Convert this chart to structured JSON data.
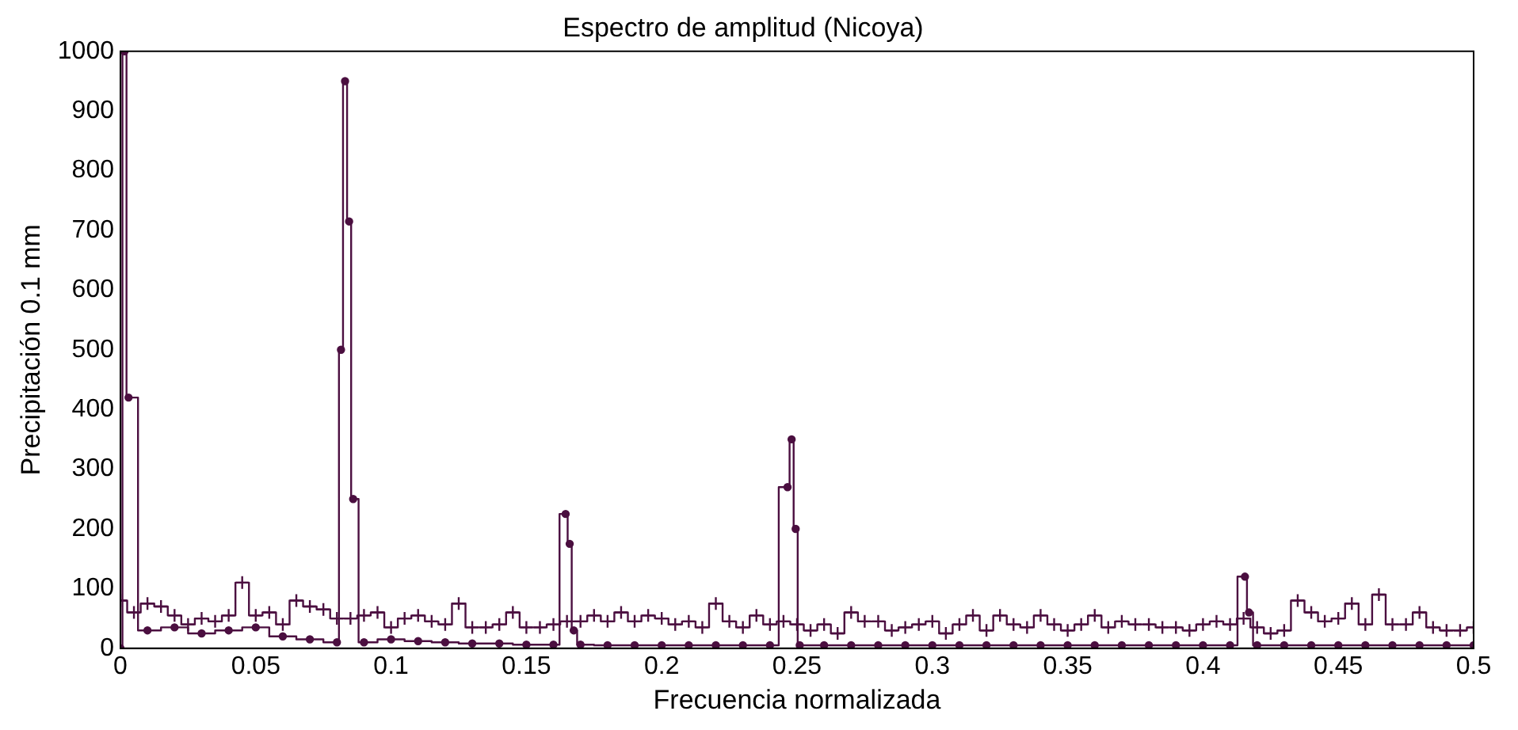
{
  "chart_data": {
    "type": "step",
    "title": "Espectro de amplitud (Nicoya)",
    "xlabel": "Frecuencia normalizada",
    "ylabel": "Precipitación 0.1 mm",
    "xlim": [
      0,
      0.5
    ],
    "ylim": [
      0,
      1000
    ],
    "xticks": [
      0,
      0.05,
      0.1,
      0.15,
      0.2,
      0.25,
      0.3,
      0.35,
      0.4,
      0.45,
      0.5
    ],
    "yticks": [
      0,
      100,
      200,
      300,
      400,
      500,
      600,
      700,
      800,
      900,
      1000
    ],
    "grid": false,
    "legend": false,
    "series": [
      {
        "color": "#4b0f40",
        "marker": "cross",
        "x": [
          0,
          0.005,
          0.01,
          0.015,
          0.02,
          0.025,
          0.03,
          0.035,
          0.04,
          0.045,
          0.05,
          0.055,
          0.06,
          0.065,
          0.07,
          0.075,
          0.08,
          0.085,
          0.09,
          0.095,
          0.1,
          0.105,
          0.11,
          0.115,
          0.12,
          0.125,
          0.13,
          0.135,
          0.14,
          0.145,
          0.15,
          0.155,
          0.16,
          0.165,
          0.17,
          0.175,
          0.18,
          0.185,
          0.19,
          0.195,
          0.2,
          0.205,
          0.21,
          0.215,
          0.22,
          0.225,
          0.23,
          0.235,
          0.24,
          0.245,
          0.25,
          0.255,
          0.26,
          0.265,
          0.27,
          0.275,
          0.28,
          0.285,
          0.29,
          0.295,
          0.3,
          0.305,
          0.31,
          0.315,
          0.32,
          0.325,
          0.33,
          0.335,
          0.34,
          0.345,
          0.35,
          0.355,
          0.36,
          0.365,
          0.37,
          0.375,
          0.38,
          0.385,
          0.39,
          0.395,
          0.4,
          0.405,
          0.41,
          0.415,
          0.42,
          0.425,
          0.43,
          0.435,
          0.44,
          0.445,
          0.45,
          0.455,
          0.46,
          0.465,
          0.47,
          0.475,
          0.48,
          0.485,
          0.49,
          0.495,
          0.5
        ],
        "values": [
          80,
          60,
          75,
          70,
          55,
          40,
          50,
          45,
          55,
          110,
          55,
          60,
          40,
          80,
          70,
          65,
          50,
          50,
          55,
          60,
          35,
          50,
          55,
          45,
          40,
          75,
          35,
          35,
          40,
          60,
          35,
          35,
          40,
          45,
          45,
          55,
          45,
          60,
          45,
          55,
          50,
          40,
          45,
          35,
          75,
          45,
          35,
          55,
          40,
          45,
          40,
          30,
          40,
          25,
          60,
          45,
          45,
          30,
          35,
          40,
          45,
          25,
          40,
          55,
          30,
          55,
          40,
          35,
          55,
          40,
          30,
          40,
          55,
          35,
          45,
          40,
          40,
          35,
          35,
          30,
          40,
          45,
          40,
          50,
          35,
          25,
          30,
          80,
          60,
          45,
          50,
          75,
          40,
          90,
          40,
          40,
          60,
          35,
          30,
          30,
          35
        ]
      },
      {
        "color": "#4b0f40",
        "marker": "circle",
        "x": [
          0,
          0.0015,
          0.003,
          0.01,
          0.02,
          0.03,
          0.04,
          0.05,
          0.06,
          0.07,
          0.08,
          0.0815,
          0.083,
          0.0845,
          0.086,
          0.09,
          0.1,
          0.11,
          0.12,
          0.13,
          0.14,
          0.15,
          0.16,
          0.1645,
          0.166,
          0.1675,
          0.17,
          0.18,
          0.19,
          0.2,
          0.21,
          0.22,
          0.23,
          0.24,
          0.2465,
          0.248,
          0.2495,
          0.251,
          0.26,
          0.27,
          0.28,
          0.29,
          0.3,
          0.31,
          0.32,
          0.33,
          0.34,
          0.35,
          0.36,
          0.37,
          0.38,
          0.39,
          0.4,
          0.41,
          0.4155,
          0.417,
          0.42,
          0.43,
          0.44,
          0.45,
          0.46,
          0.47,
          0.48,
          0.49,
          0.5
        ],
        "values": [
          0,
          1000,
          420,
          30,
          35,
          25,
          30,
          35,
          20,
          15,
          10,
          500,
          950,
          715,
          250,
          10,
          15,
          12,
          10,
          8,
          8,
          6,
          6,
          225,
          175,
          30,
          6,
          5,
          5,
          5,
          5,
          5,
          5,
          5,
          270,
          350,
          200,
          5,
          5,
          5,
          5,
          5,
          5,
          5,
          5,
          5,
          5,
          5,
          5,
          5,
          5,
          5,
          5,
          5,
          120,
          60,
          5,
          5,
          5,
          5,
          5,
          5,
          5,
          5,
          5
        ]
      }
    ]
  }
}
